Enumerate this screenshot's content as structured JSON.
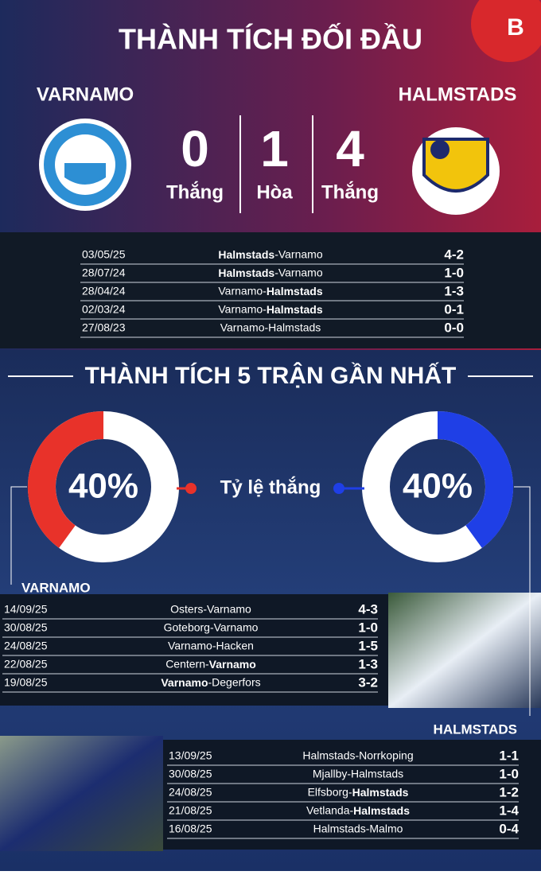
{
  "header": {
    "title": "THÀNH TÍCH ĐỐI ĐẦU"
  },
  "h2h": {
    "team_left": "VARNAMO",
    "team_right": "HALMSTADS",
    "summary": [
      {
        "value": 0,
        "label": "Thắng"
      },
      {
        "value": 1,
        "label": "Hòa"
      },
      {
        "value": 4,
        "label": "Thắng"
      }
    ],
    "matches": [
      {
        "date": "03/05/25",
        "fixture": "Halmstads-Varnamo",
        "bold": "Halmstads",
        "score": "4-2"
      },
      {
        "date": "28/07/24",
        "fixture": "Halmstads-Varnamo",
        "bold": "Halmstads",
        "score": "1-0"
      },
      {
        "date": "28/04/24",
        "fixture": "Varnamo-Halmstads",
        "bold": "Halmstads",
        "score": "1-3"
      },
      {
        "date": "02/03/24",
        "fixture": "Varnamo-Halmstads",
        "bold": "Halmstads",
        "score": "0-1"
      },
      {
        "date": "27/08/23",
        "fixture": "Varnamo-Halmstads",
        "score": "0-0"
      }
    ]
  },
  "form": {
    "title": "THÀNH TÍCH 5 TRẬN GẦN NHẤT",
    "label": "Tỷ lệ thắng",
    "left": {
      "value": 40,
      "label": "40%",
      "color": "#e8322a"
    },
    "right": {
      "value": 40,
      "label": "40%",
      "color": "#1f3fe6"
    }
  },
  "form_left": {
    "team": "VARNAMO",
    "matches": [
      {
        "date": "14/09/25",
        "fixture": "Osters-Varnamo",
        "score": "4-3"
      },
      {
        "date": "30/08/25",
        "fixture": "Goteborg-Varnamo",
        "score": "1-0"
      },
      {
        "date": "24/08/25",
        "fixture": "Varnamo-Hacken",
        "score": "1-5"
      },
      {
        "date": "22/08/25",
        "fixture": "Centern-Varnamo",
        "bold": "Varnamo",
        "score": "1-3"
      },
      {
        "date": "19/08/25",
        "fixture": "Varnamo-Degerfors",
        "bold": "Varnamo",
        "score": "3-2"
      }
    ]
  },
  "form_right": {
    "team": "HALMSTADS",
    "matches": [
      {
        "date": "13/09/25",
        "fixture": "Halmstads-Norrkoping",
        "score": "1-1"
      },
      {
        "date": "30/08/25",
        "fixture": "Mjallby-Halmstads",
        "score": "1-0"
      },
      {
        "date": "24/08/25",
        "fixture": "Elfsborg-Halmstads",
        "bold": "Halmstads",
        "score": "1-2"
      },
      {
        "date": "21/08/25",
        "fixture": "Vetlanda-Halmstads",
        "bold": "Halmstads",
        "score": "1-4"
      },
      {
        "date": "16/08/25",
        "fixture": "Halmstads-Malmo",
        "score": "0-4"
      }
    ]
  }
}
